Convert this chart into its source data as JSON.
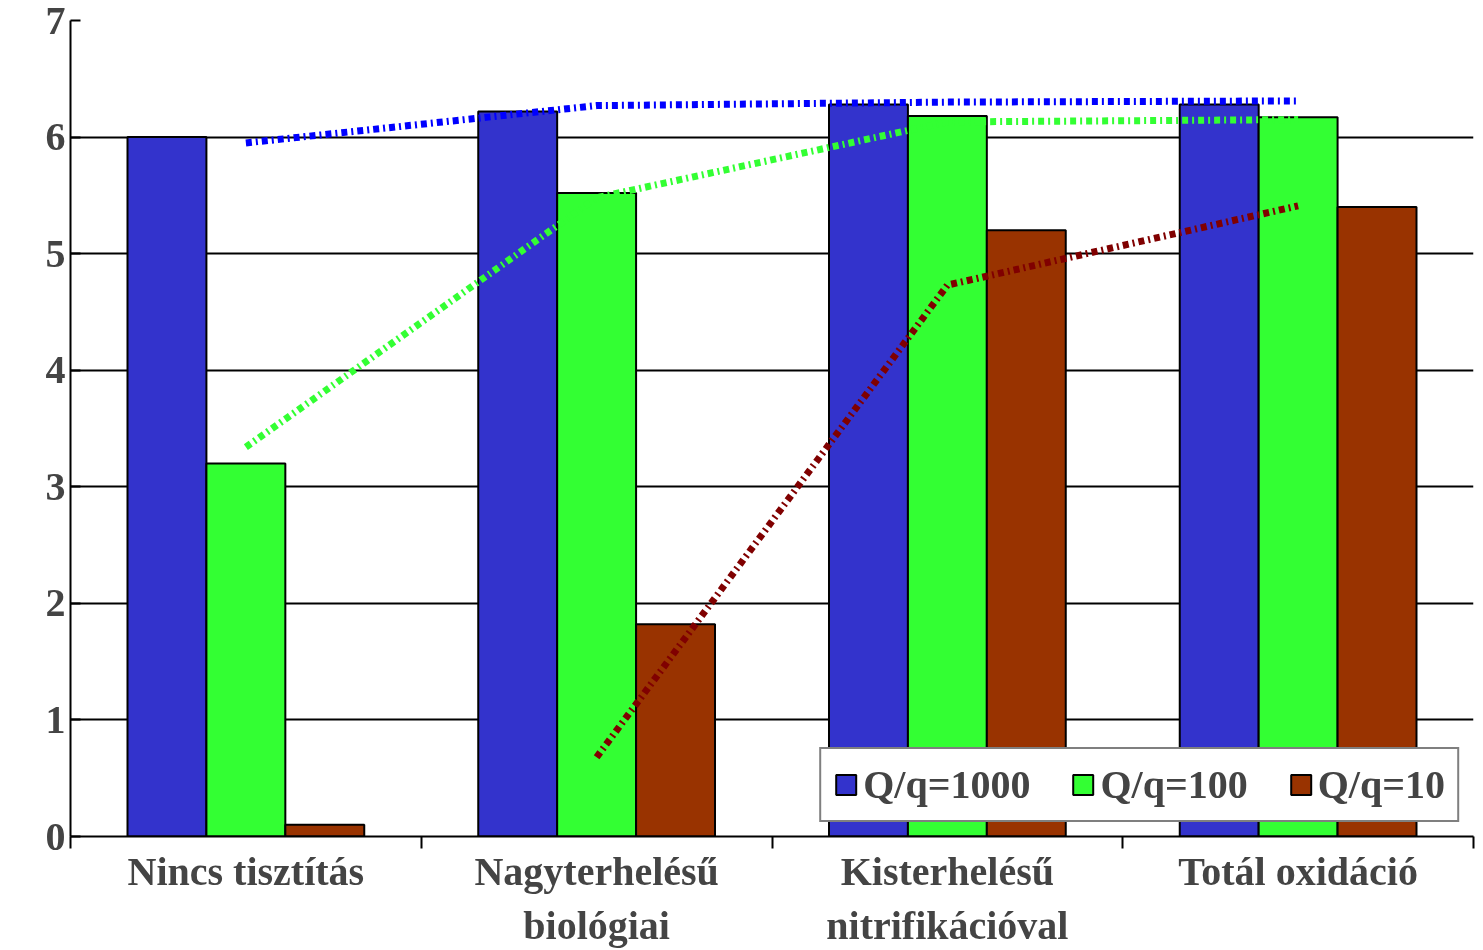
{
  "chart_data": {
    "type": "bar",
    "categories": [
      "Nincs tisztítás",
      "Nagyterhelésű\nbiológiai",
      "Kisterhelésű\nnitrifikációval",
      "Totál oxidáció"
    ],
    "series": [
      {
        "name": "Q/q=1000",
        "color": "#3333cc",
        "values": [
          6.0,
          6.22,
          6.28,
          6.28
        ]
      },
      {
        "name": "Q/q=100",
        "color": "#33ff33",
        "values": [
          3.2,
          5.52,
          6.18,
          6.17
        ]
      },
      {
        "name": "Q/q=10",
        "color": "#993300",
        "values": [
          0.1,
          1.82,
          5.2,
          5.4
        ]
      },
      {
        "type": "line",
        "color": "#0000ff",
        "line_style": "dashed",
        "x": [
          "Nincs tisztítás",
          "Nagyterhelésű\nbiológiai",
          "Kisterhelésű\nnitrifikációval",
          "Totál oxidáció"
        ],
        "values": [
          5.95,
          6.27,
          6.3,
          6.31
        ]
      },
      {
        "type": "line",
        "color": "#33ff33",
        "line_style": "dashed",
        "x": [
          "Nincs tisztítás",
          "Nagyterhelésű\nbiológiai",
          "Kisterhelésű\nnitrifikációval",
          "Totál oxidáció"
        ],
        "values": [
          3.34,
          5.48,
          6.13,
          6.15
        ]
      },
      {
        "type": "line",
        "color": "#800000",
        "line_style": "dashed",
        "x": [
          "Nincs tisztítás",
          "Nagyterhelésű\nbiológiai",
          "Kisterhelésű\nnitrifikációval",
          "Totál oxidáció"
        ],
        "values": [
          null,
          0.68,
          4.73,
          5.41
        ]
      }
    ],
    "ylim": [
      0,
      7
    ],
    "yticks": [
      0,
      1,
      2,
      3,
      4,
      5,
      6,
      7
    ],
    "grid": "y",
    "legend": "bottom right"
  }
}
